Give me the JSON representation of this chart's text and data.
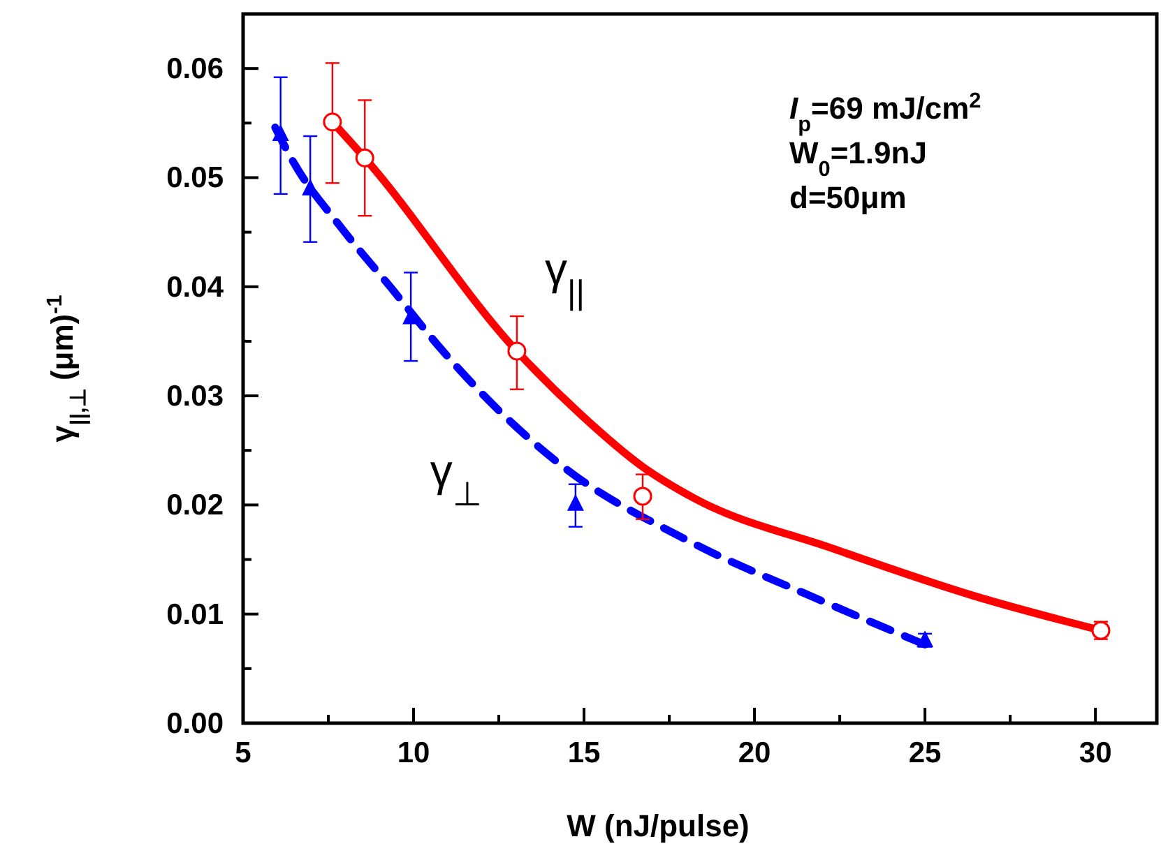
{
  "chart_data": {
    "type": "scatter",
    "xlabel": "W (nJ/pulse)",
    "ylabel": "γ$_{||,⊥}$ (μm)$^{-1}$",
    "xlim": [
      5,
      31.8
    ],
    "ylim": [
      0,
      0.065
    ],
    "xticks": [
      5,
      {
        "value": 7.5,
        "label": null
      },
      10,
      {
        "value": 12.5,
        "label": null
      },
      15,
      {
        "value": 17.5,
        "label": null
      },
      20,
      {
        "value": 22.5,
        "label": null
      },
      25,
      {
        "value": 27.5,
        "label": null
      },
      30
    ],
    "yticks": [
      {
        "value": 0,
        "label": "0.00"
      },
      {
        "value": 0.005,
        "label": null
      },
      0.01,
      {
        "value": 0.015,
        "label": null
      },
      0.02,
      {
        "value": 0.025,
        "label": null
      },
      0.03,
      {
        "value": 0.035,
        "label": null
      },
      0.04,
      {
        "value": 0.045,
        "label": null
      },
      0.05,
      {
        "value": 0.055,
        "label": null
      },
      0.06
    ],
    "grid": false,
    "series": [
      {
        "type": "line",
        "name": "γ$_{||}$",
        "color": "#ff0000",
        "line_style": "solid",
        "x": [
          7.62,
          8.57,
          13.03,
          14.9,
          16.72,
          18.24,
          22.3,
          26.4,
          30.16
        ],
        "values": [
          0.0551,
          0.0518,
          0.0341,
          0.0283,
          0.0235,
          0.0206,
          0.016,
          0.0117,
          0.0085
        ]
      },
      {
        "type": "line",
        "name": "γ$_{⊥}$",
        "color": "#0000ff",
        "line_style": "dashed",
        "x": [
          5.94,
          6.48,
          7.83,
          9.34,
          10.86,
          12.62,
          14.39,
          18.07,
          21.76,
          25.0
        ],
        "values": [
          0.0546,
          0.0514,
          0.0456,
          0.0399,
          0.0341,
          0.0283,
          0.0235,
          0.0167,
          0.0115,
          0.0072
        ]
      },
      {
        "color": "#ff0000",
        "marker": "circle",
        "x": [
          7.62,
          8.57,
          13.03,
          16.72,
          30.16
        ],
        "values": [
          0.0551,
          0.0518,
          0.0341,
          0.0208,
          0.0085
        ],
        "errors": [
          [
            0.0495,
            0.0605
          ],
          [
            0.0465,
            0.0571
          ],
          [
            0.0306,
            0.0373
          ],
          [
            0.0187,
            0.0228
          ],
          [
            0.0077,
            0.0093
          ]
        ]
      },
      {
        "color": "#0000ff",
        "marker": "triangle",
        "x": [
          6.1,
          6.97,
          9.92,
          14.75,
          25.0
        ],
        "values": [
          0.054,
          0.049,
          0.0372,
          0.0201,
          0.0076
        ],
        "errors": [
          [
            0.0485,
            0.0592
          ],
          [
            0.0441,
            0.0538
          ],
          [
            0.0332,
            0.0413
          ],
          [
            0.018,
            0.0219
          ],
          [
            0.007,
            0.0082
          ]
        ]
      }
    ],
    "annotations": [
      "I$_{p}$=69 mJ/cm$^{2}$",
      "W$_{0}$=1.9nJ",
      "d=50μm"
    ]
  }
}
